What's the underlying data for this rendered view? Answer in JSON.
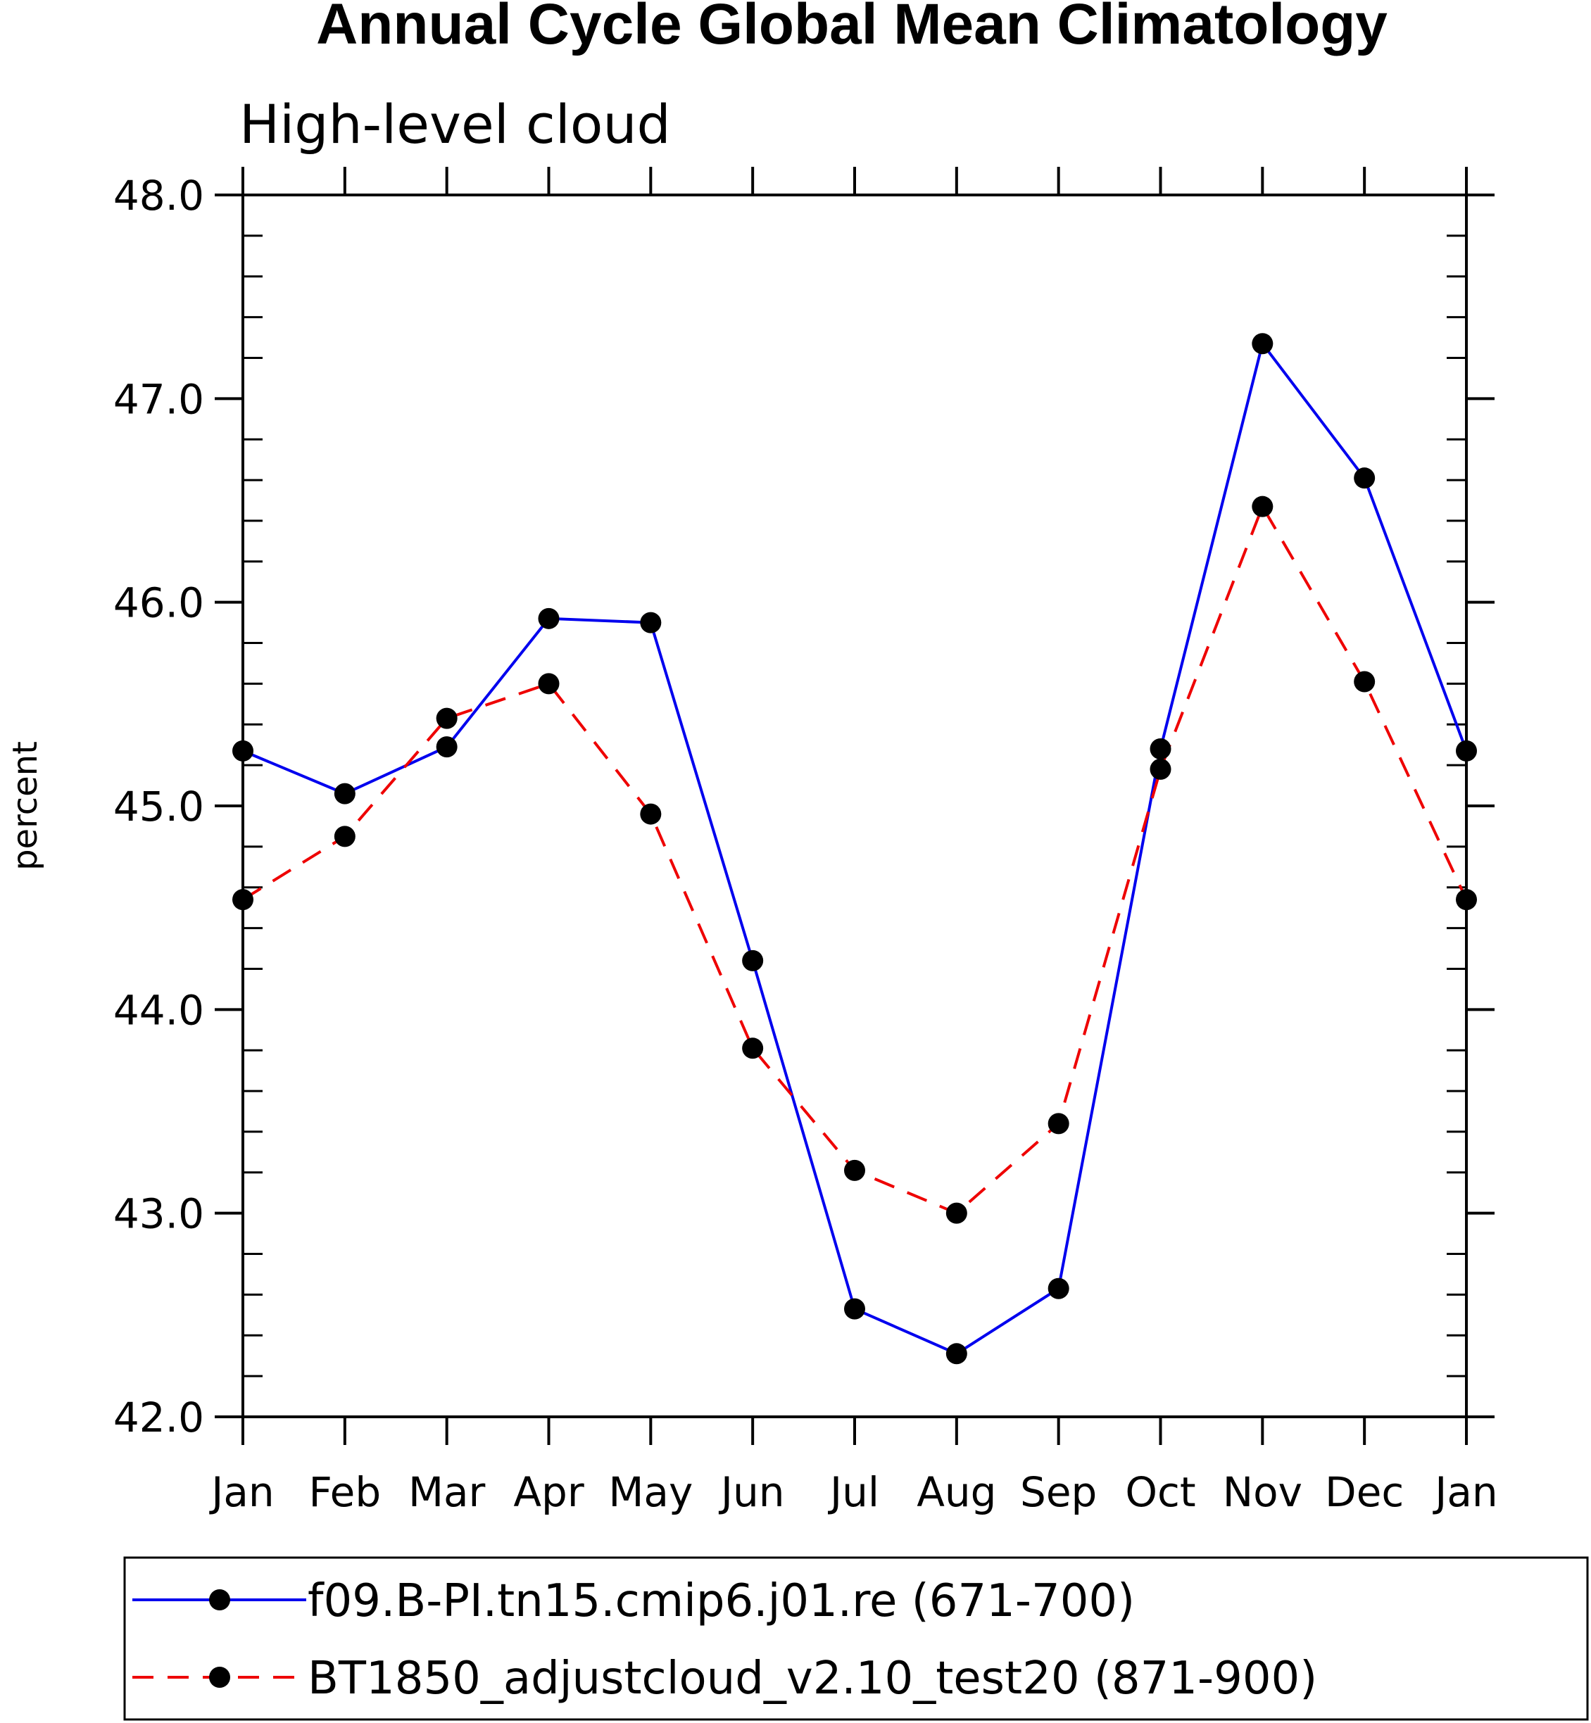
{
  "chart_data": {
    "type": "line",
    "title": "Annual Cycle Global Mean Climatology",
    "subtitle": "High-level cloud",
    "xlabel": "",
    "ylabel": "percent",
    "categories": [
      "Jan",
      "Feb",
      "Mar",
      "Apr",
      "May",
      "Jun",
      "Jul",
      "Aug",
      "Sep",
      "Oct",
      "Nov",
      "Dec",
      "Jan"
    ],
    "ylim": [
      42.0,
      48.0
    ],
    "yticks": [
      "42.0",
      "43.0",
      "44.0",
      "45.0",
      "46.0",
      "47.0",
      "48.0"
    ],
    "yminor_step": 0.2,
    "grid": false,
    "legend_position": "bottom",
    "series": [
      {
        "name": "f09.B-PI.tn15.cmip6.j01.re (671-700)",
        "color": "#0000ee",
        "dash": "solid",
        "marker": "filled-circle",
        "values": [
          45.27,
          45.06,
          45.29,
          45.92,
          45.9,
          44.24,
          42.53,
          42.31,
          42.63,
          45.28,
          47.27,
          46.61,
          45.27
        ]
      },
      {
        "name": "BT1850_adjustcloud_v2.10_test20 (871-900)",
        "color": "#ee0000",
        "dash": "dashed",
        "marker": "filled-circle",
        "values": [
          44.54,
          44.85,
          45.43,
          45.6,
          44.96,
          43.81,
          43.21,
          43.0,
          43.44,
          45.18,
          46.47,
          45.61,
          44.54
        ]
      }
    ]
  }
}
